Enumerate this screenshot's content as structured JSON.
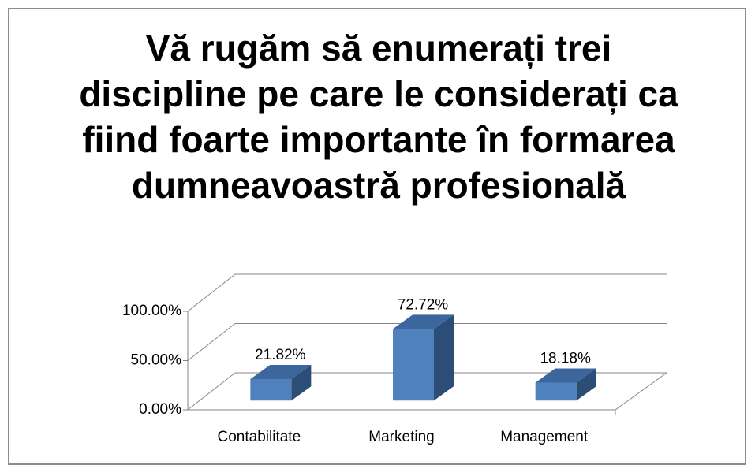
{
  "chart_data": {
    "type": "bar3d",
    "title": "Vă rugăm să enumerați trei discipline pe care le considerați ca fiind foarte importante în formarea dumneavoastră profesională",
    "categories": [
      "Contabilitate",
      "Marketing",
      "Management"
    ],
    "values": [
      21.82,
      72.72,
      18.18
    ],
    "value_labels": [
      "21.82%",
      "72.72%",
      "18.18%"
    ],
    "color": "#4f81bd",
    "ylim": [
      0,
      100
    ],
    "yticks": [
      {
        "value": 0,
        "label": "0.00%"
      },
      {
        "value": 50,
        "label": "50.00%"
      },
      {
        "value": 100,
        "label": "100.00%"
      }
    ],
    "grid": true
  }
}
